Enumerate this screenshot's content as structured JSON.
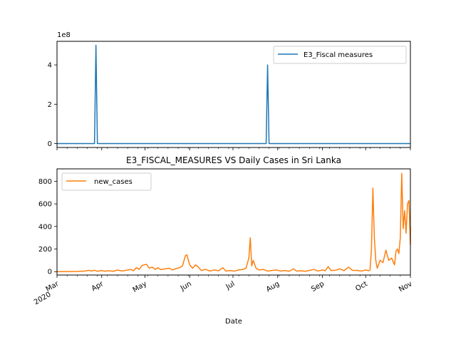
{
  "chart_data": [
    {
      "type": "line",
      "title": "",
      "xlabel": "",
      "ylabel": "",
      "offset_text": "1e8",
      "ylim": [
        -20000000,
        520000000
      ],
      "yticks": [
        0,
        2,
        4
      ],
      "xrange": [
        "2020-03-01",
        "2020-11-01"
      ],
      "legend": "top-right",
      "color": "#1f77b4",
      "series": [
        {
          "name": "E3_Fiscal measures",
          "points": [
            [
              "2020-03-01",
              0
            ],
            [
              "2020-03-27",
              0
            ],
            [
              "2020-03-28",
              500000000
            ],
            [
              "2020-03-29",
              0
            ],
            [
              "2020-07-24",
              0
            ],
            [
              "2020-07-25",
              400000000
            ],
            [
              "2020-07-26",
              0
            ],
            [
              "2020-11-01",
              0
            ]
          ]
        }
      ]
    },
    {
      "type": "line",
      "title": "E3_FISCAL_MEASURES VS Daily Cases in Sri Lanka",
      "xlabel": "Date",
      "ylabel": "",
      "ylim": [
        -30,
        910
      ],
      "yticks": [
        0,
        200,
        400,
        600,
        800
      ],
      "xrange": [
        "2020-03-01",
        "2020-11-01"
      ],
      "xticks": [
        {
          "date": "2020-03-01",
          "label": "Mar",
          "sub": "2020"
        },
        {
          "date": "2020-04-01",
          "label": "Apr"
        },
        {
          "date": "2020-05-01",
          "label": "May"
        },
        {
          "date": "2020-06-01",
          "label": "Jun"
        },
        {
          "date": "2020-07-01",
          "label": "Jul"
        },
        {
          "date": "2020-08-01",
          "label": "Aug"
        },
        {
          "date": "2020-09-01",
          "label": "Sep"
        },
        {
          "date": "2020-10-01",
          "label": "Oct"
        },
        {
          "date": "2020-11-01",
          "label": "Nov"
        }
      ],
      "legend": "top-left",
      "color": "#ff7f0e",
      "series": [
        {
          "name": "new_cases",
          "points": [
            [
              "2020-03-01",
              0
            ],
            [
              "2020-03-11",
              1
            ],
            [
              "2020-03-15",
              2
            ],
            [
              "2020-03-20",
              5
            ],
            [
              "2020-03-23",
              12
            ],
            [
              "2020-03-25",
              5
            ],
            [
              "2020-03-27",
              12
            ],
            [
              "2020-03-29",
              3
            ],
            [
              "2020-04-01",
              10
            ],
            [
              "2020-04-03",
              4
            ],
            [
              "2020-04-06",
              8
            ],
            [
              "2020-04-09",
              3
            ],
            [
              "2020-04-12",
              14
            ],
            [
              "2020-04-15",
              6
            ],
            [
              "2020-04-18",
              12
            ],
            [
              "2020-04-21",
              20
            ],
            [
              "2020-04-23",
              8
            ],
            [
              "2020-04-25",
              35
            ],
            [
              "2020-04-27",
              20
            ],
            [
              "2020-04-29",
              55
            ],
            [
              "2020-05-02",
              65
            ],
            [
              "2020-05-04",
              30
            ],
            [
              "2020-05-06",
              40
            ],
            [
              "2020-05-08",
              20
            ],
            [
              "2020-05-10",
              35
            ],
            [
              "2020-05-12",
              18
            ],
            [
              "2020-05-15",
              25
            ],
            [
              "2020-05-18",
              30
            ],
            [
              "2020-05-20",
              15
            ],
            [
              "2020-05-22",
              25
            ],
            [
              "2020-05-25",
              35
            ],
            [
              "2020-05-27",
              50
            ],
            [
              "2020-05-29",
              140
            ],
            [
              "2020-05-30",
              150
            ],
            [
              "2020-06-01",
              60
            ],
            [
              "2020-06-03",
              30
            ],
            [
              "2020-06-05",
              60
            ],
            [
              "2020-06-07",
              40
            ],
            [
              "2020-06-09",
              10
            ],
            [
              "2020-06-12",
              20
            ],
            [
              "2020-06-15",
              5
            ],
            [
              "2020-06-18",
              15
            ],
            [
              "2020-06-21",
              8
            ],
            [
              "2020-06-24",
              35
            ],
            [
              "2020-06-26",
              5
            ],
            [
              "2020-06-29",
              10
            ],
            [
              "2020-07-02",
              5
            ],
            [
              "2020-07-05",
              15
            ],
            [
              "2020-07-08",
              20
            ],
            [
              "2020-07-10",
              30
            ],
            [
              "2020-07-12",
              120
            ],
            [
              "2020-07-13",
              300
            ],
            [
              "2020-07-14",
              50
            ],
            [
              "2020-07-15",
              100
            ],
            [
              "2020-07-17",
              30
            ],
            [
              "2020-07-19",
              15
            ],
            [
              "2020-07-22",
              20
            ],
            [
              "2020-07-25",
              5
            ],
            [
              "2020-07-28",
              10
            ],
            [
              "2020-07-31",
              15
            ],
            [
              "2020-08-03",
              5
            ],
            [
              "2020-08-06",
              10
            ],
            [
              "2020-08-09",
              3
            ],
            [
              "2020-08-12",
              25
            ],
            [
              "2020-08-14",
              5
            ],
            [
              "2020-08-17",
              8
            ],
            [
              "2020-08-20",
              3
            ],
            [
              "2020-08-23",
              10
            ],
            [
              "2020-08-26",
              20
            ],
            [
              "2020-08-29",
              5
            ],
            [
              "2020-09-01",
              15
            ],
            [
              "2020-09-03",
              8
            ],
            [
              "2020-09-05",
              45
            ],
            [
              "2020-09-07",
              10
            ],
            [
              "2020-09-10",
              12
            ],
            [
              "2020-09-13",
              25
            ],
            [
              "2020-09-16",
              8
            ],
            [
              "2020-09-19",
              40
            ],
            [
              "2020-09-22",
              10
            ],
            [
              "2020-09-25",
              12
            ],
            [
              "2020-09-28",
              5
            ],
            [
              "2020-10-01",
              15
            ],
            [
              "2020-10-03",
              8
            ],
            [
              "2020-10-04",
              15
            ],
            [
              "2020-10-05",
              200
            ],
            [
              "2020-10-06",
              740
            ],
            [
              "2020-10-07",
              300
            ],
            [
              "2020-10-08",
              100
            ],
            [
              "2020-10-09",
              30
            ],
            [
              "2020-10-11",
              100
            ],
            [
              "2020-10-13",
              80
            ],
            [
              "2020-10-15",
              190
            ],
            [
              "2020-10-17",
              100
            ],
            [
              "2020-10-19",
              120
            ],
            [
              "2020-10-21",
              60
            ],
            [
              "2020-10-22",
              180
            ],
            [
              "2020-10-23",
              200
            ],
            [
              "2020-10-24",
              160
            ],
            [
              "2020-10-25",
              300
            ],
            [
              "2020-10-26",
              870
            ],
            [
              "2020-10-27",
              380
            ],
            [
              "2020-10-28",
              540
            ],
            [
              "2020-10-29",
              340
            ],
            [
              "2020-10-30",
              600
            ],
            [
              "2020-10-31",
              630
            ],
            [
              "2020-11-01",
              240
            ],
            [
              "2020-11-01",
              400
            ]
          ]
        }
      ]
    }
  ]
}
